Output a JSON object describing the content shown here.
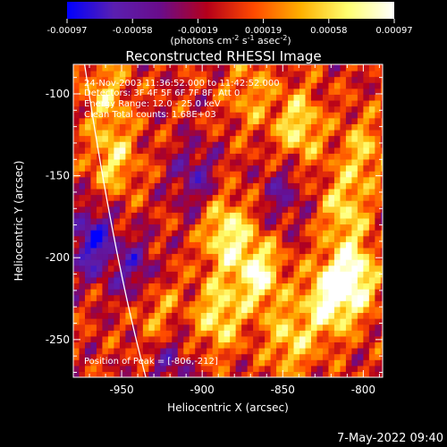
{
  "colorbar": {
    "ticks": [
      "-0.00097",
      "-0.00058",
      "-0.00019",
      "0.00019",
      "0.00058",
      "0.00097"
    ],
    "unit_prefix": "(photons cm",
    "unit_exp1": "-2",
    "unit_mid": " s",
    "unit_exp2": "-1",
    "unit_mid2": " asec",
    "unit_exp3": "-2",
    "unit_suffix": ")",
    "colors": [
      "#0000ff",
      "#5a1fb0",
      "#6a0c8a",
      "#b5001a",
      "#ff4a00",
      "#ffb000",
      "#ffff70",
      "#ffffff"
    ]
  },
  "chart_data": {
    "type": "heatmap",
    "title": "Reconstructed RHESSI Image",
    "xlabel": "Heliocentric X (arcsec)",
    "ylabel": "Heliocentric Y (arcsec)",
    "xlim": [
      -980,
      -788
    ],
    "ylim": [
      -273,
      -82
    ],
    "xticks": [
      "-950",
      "-900",
      "-850",
      "-800"
    ],
    "yticks": [
      "-100",
      "-150",
      "-200",
      "-250"
    ],
    "value_range": [
      -0.00097,
      0.00097
    ],
    "limb_curve": [
      [
        -973,
        -82
      ],
      [
        -955,
        -200
      ],
      [
        -935,
        -273
      ]
    ],
    "annotations": {
      "time": "24-Nov-2003 11:36:52.000 to 11:42:52.000",
      "detectors": "Detectors: 3F 4F 5F 6F 7F 8F, Att 0",
      "energy": "Energy Range: 12.0 - 25.0 keV",
      "clean": "Clean      Total counts: 1.68E+03",
      "peak": "Position of Peak = [-806,-212]"
    },
    "sources": [
      {
        "x": -885,
        "y": -185,
        "value": 0.0008
      },
      {
        "x": -865,
        "y": -210,
        "value": 0.00085
      },
      {
        "x": -890,
        "y": -235,
        "value": 0.0007
      },
      {
        "x": -845,
        "y": -250,
        "value": 0.0006
      },
      {
        "x": -806,
        "y": -212,
        "value": 0.00097
      },
      {
        "x": -822,
        "y": -225,
        "value": 0.0009
      },
      {
        "x": -840,
        "y": -120,
        "value": 0.0007
      },
      {
        "x": -812,
        "y": -170,
        "value": 0.0006
      },
      {
        "x": -800,
        "y": -135,
        "value": 0.0005
      },
      {
        "x": -955,
        "y": -140,
        "value": 0.0006
      },
      {
        "x": -930,
        "y": -230,
        "value": 0.0005
      },
      {
        "x": -960,
        "y": -100,
        "value": 0.0005
      },
      {
        "x": -870,
        "y": -100,
        "value": 0.0004
      }
    ],
    "negatives": [
      {
        "x": -968,
        "y": -190,
        "value": -0.0008
      },
      {
        "x": -940,
        "y": -210,
        "value": -0.0006
      },
      {
        "x": -905,
        "y": -150,
        "value": -0.0005
      },
      {
        "x": -850,
        "y": -160,
        "value": -0.0004
      },
      {
        "x": -920,
        "y": -265,
        "value": -0.0004
      }
    ]
  },
  "footer": {
    "timestamp": "7-May-2022 09:40"
  }
}
